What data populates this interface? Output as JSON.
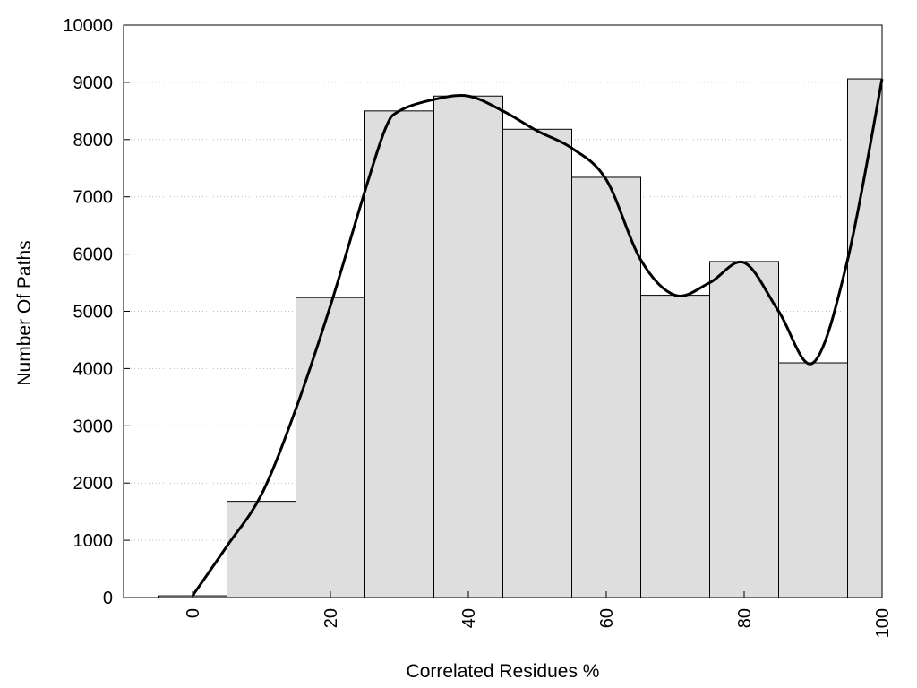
{
  "chart_data": {
    "type": "bar",
    "title": "",
    "xlabel": "Correlated Residues %",
    "ylabel": "Number Of Paths",
    "xlim": [
      -10,
      100
    ],
    "ylim": [
      0,
      10000
    ],
    "x_ticks": [
      0,
      20,
      40,
      60,
      80,
      100
    ],
    "y_ticks": [
      0,
      1000,
      2000,
      3000,
      4000,
      5000,
      6000,
      7000,
      8000,
      9000,
      10000
    ],
    "grid": "horizontal dotted",
    "bar_width": 10,
    "bins": [
      0,
      10,
      20,
      30,
      40,
      50,
      60,
      70,
      80,
      90,
      100
    ],
    "values": [
      30,
      1680,
      5240,
      8500,
      8760,
      8180,
      7340,
      5280,
      5870,
      4100,
      9060
    ],
    "curve": {
      "x": [
        0,
        5,
        10,
        15,
        20,
        25,
        28,
        30,
        35,
        40,
        45,
        50,
        55,
        60,
        65,
        70,
        75,
        80,
        85,
        90,
        95,
        100
      ],
      "y": [
        30,
        900,
        1800,
        3300,
        5100,
        7100,
        8200,
        8500,
        8700,
        8760,
        8500,
        8150,
        7850,
        7300,
        5900,
        5280,
        5500,
        5850,
        5000,
        4100,
        5900,
        9060
      ]
    },
    "colors": {
      "bar_fill": "#dedede",
      "bar_stroke": "#000000",
      "curve": "#000000",
      "grid": "#bbbbbb"
    }
  }
}
